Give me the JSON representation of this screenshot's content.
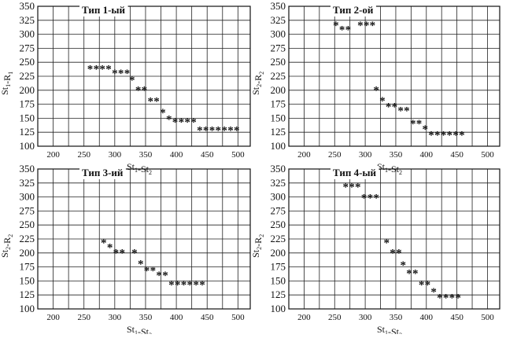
{
  "chart_data": [
    {
      "type": "scatter",
      "title": "Тип 1-ый",
      "xlabel": "St1-St2",
      "ylabel": "St1-R1",
      "xlim": [
        175,
        520
      ],
      "ylim": [
        100,
        350
      ],
      "x_ticks": [
        "200",
        "250",
        "300",
        "350",
        "400",
        "450",
        "500"
      ],
      "y_ticks": [
        "350",
        "325",
        "300",
        "275",
        "250",
        "225",
        "200",
        "175",
        "150",
        "125",
        "100"
      ],
      "grid": true,
      "x": [
        260,
        270,
        280,
        290,
        300,
        310,
        320,
        328,
        338,
        348,
        358,
        368,
        378,
        388,
        398,
        408,
        418,
        428,
        438,
        448,
        458,
        468,
        478,
        488,
        498
      ],
      "y": [
        240,
        240,
        240,
        240,
        232,
        232,
        232,
        220,
        202,
        202,
        182,
        182,
        162,
        150,
        145,
        145,
        145,
        145,
        130,
        130,
        130,
        130,
        130,
        130,
        130
      ]
    },
    {
      "type": "scatter",
      "title": "Тип 2-ой",
      "xlabel": "St1-St2",
      "ylabel": "St2-R2",
      "xlim": [
        175,
        520
      ],
      "ylim": [
        100,
        350
      ],
      "x_ticks": [
        "200",
        "250",
        "300",
        "350",
        "400",
        "450",
        "500"
      ],
      "y_ticks": [
        "350",
        "325",
        "300",
        "275",
        "250",
        "225",
        "200",
        "175",
        "150",
        "125",
        "100"
      ],
      "grid": true,
      "x": [
        252,
        262,
        272,
        292,
        302,
        312,
        318,
        328,
        338,
        348,
        358,
        368,
        378,
        388,
        398,
        408,
        418,
        428,
        438,
        448,
        458
      ],
      "y": [
        318,
        310,
        310,
        318,
        318,
        318,
        202,
        183,
        172,
        172,
        165,
        165,
        142,
        142,
        132,
        122,
        122,
        122,
        122,
        122,
        122
      ]
    },
    {
      "type": "scatter",
      "title": "Тип 3-ий",
      "xlabel": "St1-St2",
      "ylabel": "St2-R2",
      "xlim": [
        175,
        520
      ],
      "ylim": [
        100,
        350
      ],
      "x_ticks": [
        "200",
        "250",
        "300",
        "350",
        "400",
        "450",
        "500"
      ],
      "y_ticks": [
        "350",
        "325",
        "300",
        "275",
        "250",
        "225",
        "200",
        "175",
        "150",
        "125",
        "100"
      ],
      "grid": true,
      "x": [
        282,
        292,
        302,
        312,
        332,
        342,
        352,
        362,
        372,
        382,
        392,
        402,
        412,
        422,
        432,
        442
      ],
      "y": [
        220,
        212,
        202,
        202,
        202,
        182,
        170,
        170,
        162,
        162,
        145,
        145,
        145,
        145,
        145,
        145
      ]
    },
    {
      "type": "scatter",
      "title": "Тип 4-ый",
      "xlabel": "St1-St2",
      "ylabel": "St2-R2",
      "xlim": [
        175,
        520
      ],
      "ylim": [
        100,
        350
      ],
      "x_ticks": [
        "200",
        "250",
        "300",
        "350",
        "400",
        "450",
        "500"
      ],
      "y_ticks": [
        "350",
        "325",
        "300",
        "275",
        "250",
        "225",
        "200",
        "175",
        "150",
        "125",
        "100"
      ],
      "grid": true,
      "x": [
        268,
        278,
        288,
        298,
        308,
        318,
        335,
        345,
        355,
        362,
        372,
        382,
        392,
        402,
        412,
        422,
        432,
        442,
        452
      ],
      "y": [
        320,
        320,
        320,
        300,
        300,
        300,
        220,
        202,
        202,
        180,
        165,
        165,
        145,
        145,
        132,
        122,
        122,
        122,
        122
      ]
    }
  ]
}
